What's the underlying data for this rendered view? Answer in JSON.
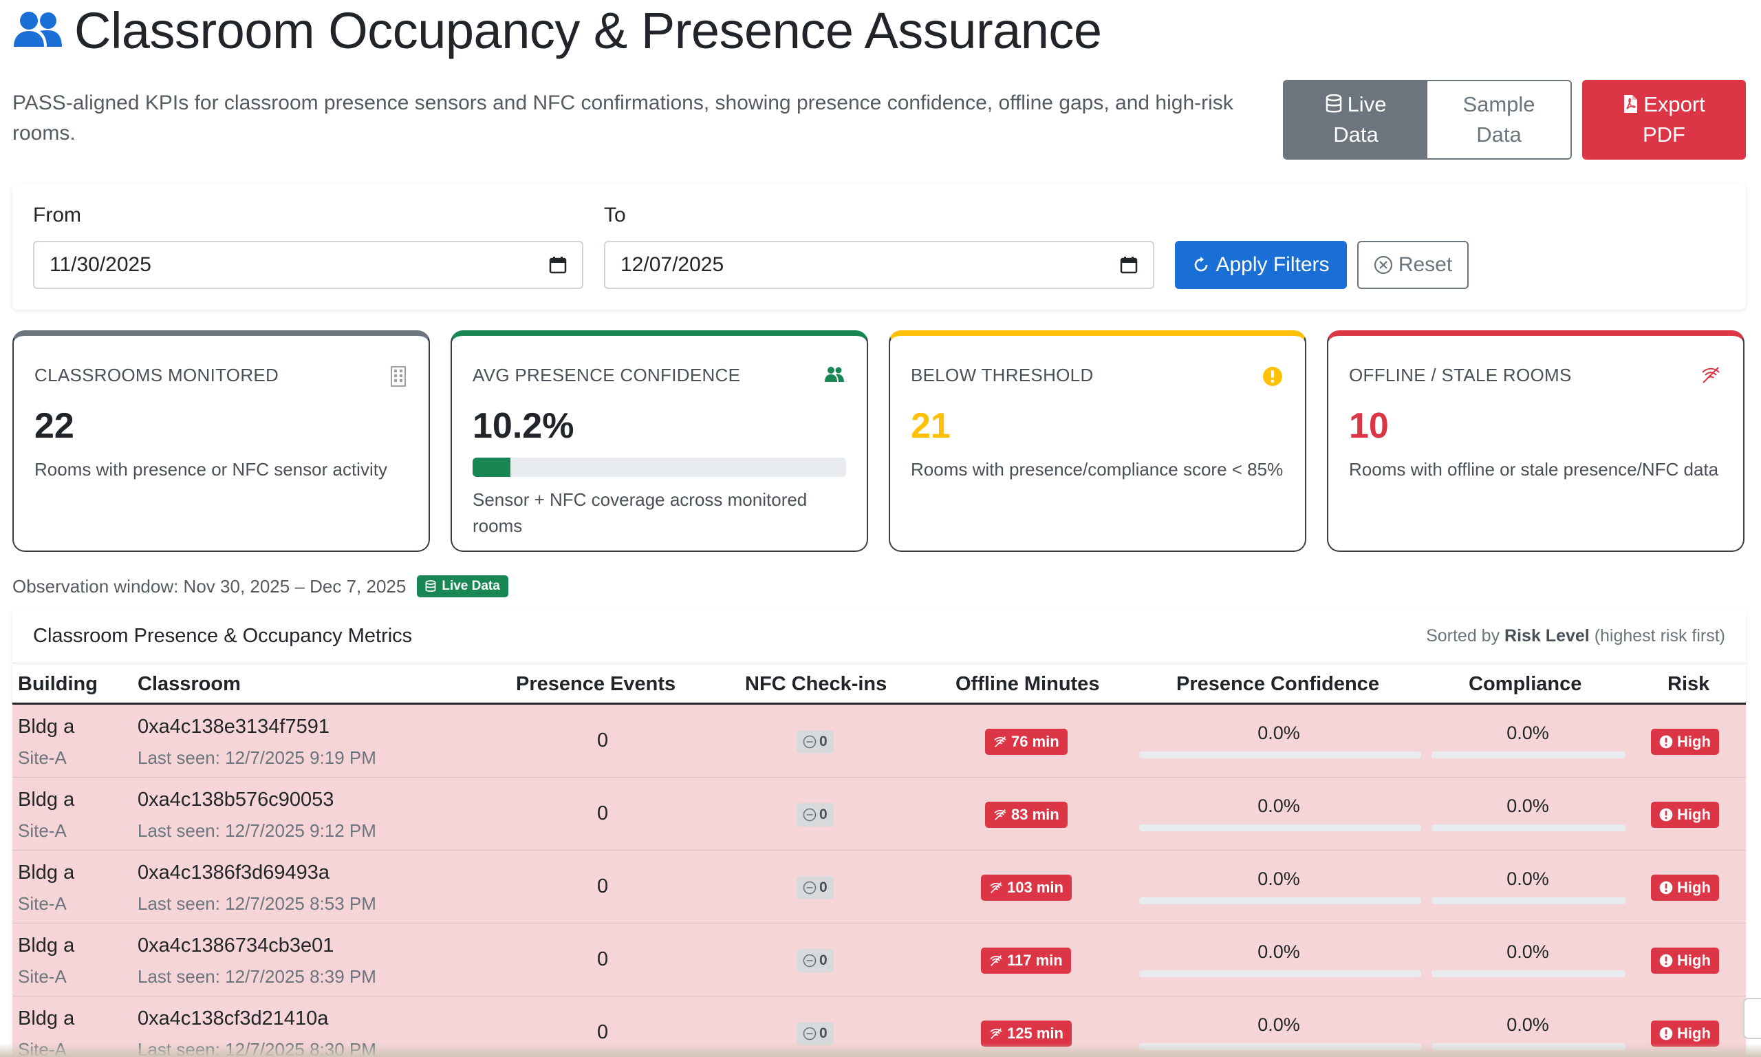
{
  "header": {
    "title": "Classroom Occupancy & Presence Assurance",
    "subtitle": "PASS-aligned KPIs for classroom presence sensors and NFC confirmations, showing presence confidence, offline gaps, and high-risk rooms.",
    "live_label_1": "Live",
    "live_label_2": "Data",
    "sample_label_1": "Sample",
    "sample_label_2": "Data",
    "export_label_1": "Export",
    "export_label_2": "PDF"
  },
  "filters": {
    "from_label": "From",
    "from_value": "11/30/2025",
    "to_label": "To",
    "to_value": "12/07/2025",
    "apply_label": "Apply Filters",
    "reset_label": "Reset"
  },
  "kpis": {
    "classrooms": {
      "label": "Classrooms Monitored",
      "value": "22",
      "desc": "Rooms with presence or NFC sensor activity"
    },
    "confidence": {
      "label": "Avg Presence Confidence",
      "value": "10.2%",
      "fraction": 0.102,
      "desc": "Sensor + NFC coverage across monitored rooms"
    },
    "below": {
      "label": "Below Threshold",
      "value": "21",
      "desc": "Rooms with presence/compliance score < 85%"
    },
    "offline": {
      "label": "Offline / Stale Rooms",
      "value": "10",
      "desc": "Rooms with offline or stale presence/NFC data"
    }
  },
  "observation": {
    "text": "Observation window: Nov 30, 2025 – Dec 7, 2025",
    "badge": "Live Data"
  },
  "table": {
    "title": "Classroom Presence & Occupancy Metrics",
    "sort_prefix": "Sorted by",
    "sort_key": "Risk Level",
    "sort_suffix": "(highest risk first)",
    "columns": {
      "building": "Building",
      "classroom": "Classroom",
      "events": "Presence Events",
      "nfc": "NFC Check-ins",
      "offline": "Offline Minutes",
      "confidence": "Presence Confidence",
      "compliance": "Compliance",
      "risk": "Risk"
    },
    "rows": [
      {
        "building": "Bldg a",
        "site": "Site-A",
        "room": "0xa4c138e3134f7591",
        "seen": "Last seen: 12/7/2025 9:19 PM",
        "events": "0",
        "nfc": "0",
        "offline": "76 min",
        "confidence": "0.0%",
        "compliance": "0.0%",
        "risk": "High"
      },
      {
        "building": "Bldg a",
        "site": "Site-A",
        "room": "0xa4c138b576c90053",
        "seen": "Last seen: 12/7/2025 9:12 PM",
        "events": "0",
        "nfc": "0",
        "offline": "83 min",
        "confidence": "0.0%",
        "compliance": "0.0%",
        "risk": "High"
      },
      {
        "building": "Bldg a",
        "site": "Site-A",
        "room": "0xa4c1386f3d69493a",
        "seen": "Last seen: 12/7/2025 8:53 PM",
        "events": "0",
        "nfc": "0",
        "offline": "103 min",
        "confidence": "0.0%",
        "compliance": "0.0%",
        "risk": "High"
      },
      {
        "building": "Bldg a",
        "site": "Site-A",
        "room": "0xa4c1386734cb3e01",
        "seen": "Last seen: 12/7/2025 8:39 PM",
        "events": "0",
        "nfc": "0",
        "offline": "117 min",
        "confidence": "0.0%",
        "compliance": "0.0%",
        "risk": "High"
      },
      {
        "building": "Bldg a",
        "site": "Site-A",
        "room": "0xa4c138cf3d21410a",
        "seen": "Last seen: 12/7/2025 8:30 PM",
        "events": "0",
        "nfc": "0",
        "offline": "125 min",
        "confidence": "0.0%",
        "compliance": "0.0%",
        "risk": "High"
      }
    ]
  },
  "colors": {
    "primary": "#1a6fd6",
    "danger": "#dc3545",
    "success": "#198754",
    "warning": "#ffc107",
    "secondary": "#6c757d",
    "row_risk_bg": "#f6d5d8"
  },
  "icons": {
    "title": "users-icon",
    "live": "database-icon",
    "export": "file-pdf-icon",
    "apply": "refresh-icon",
    "reset": "circle-x-icon",
    "classrooms": "building-icon",
    "confidence": "people-icon",
    "below": "exclamation-circle-icon",
    "offline": "wifi-off-icon",
    "nfc": "dash-circle-icon",
    "offline_badge": "wifi-off-icon",
    "risk": "exclamation-circle-icon"
  }
}
